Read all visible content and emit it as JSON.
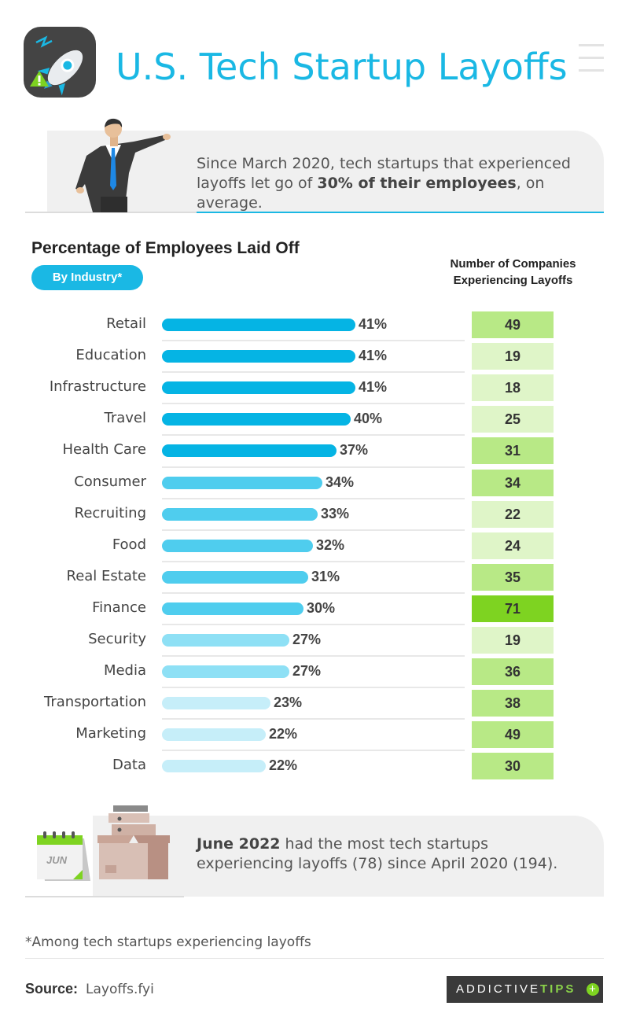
{
  "header": {
    "title": "U.S. Tech Startup Layoffs"
  },
  "callout_top": {
    "text_pre": "Since March 2020, tech startups that experienced layoffs let go of ",
    "text_bold": "30% of their employees",
    "text_post": ", on average."
  },
  "chart_heading": {
    "title": "Percentage of Employees Laid Off",
    "pill": "By Industry*",
    "count_header_line1": "Number of Companies",
    "count_header_line2": "Experiencing Layoffs"
  },
  "chart_data": {
    "type": "bar",
    "title": "Percentage of Employees Laid Off",
    "subtitle": "By Industry*",
    "categories": [
      "Retail",
      "Education",
      "Infrastructure",
      "Travel",
      "Health Care",
      "Consumer",
      "Recruiting",
      "Food",
      "Real Estate",
      "Finance",
      "Security",
      "Media",
      "Transportation",
      "Marketing",
      "Data"
    ],
    "series": [
      {
        "name": "",
        "values": [
          41,
          41,
          41,
          40,
          37,
          34,
          33,
          32,
          31,
          30,
          27,
          27,
          23,
          22,
          22
        ]
      }
    ],
    "value_labels": [
      "41%",
      "41%",
      "41%",
      "40%",
      "37%",
      "34%",
      "33%",
      "32%",
      "31%",
      "30%",
      "27%",
      "27%",
      "23%",
      "22%",
      "22%"
    ],
    "companies": {
      "name": "Number of Companies Experiencing Layoffs",
      "values": [
        49,
        19,
        18,
        25,
        31,
        34,
        22,
        24,
        35,
        71,
        19,
        36,
        38,
        49,
        30
      ]
    },
    "xlim": [
      0,
      41
    ],
    "orientation": "horizontal",
    "grid": false,
    "colors": {
      "bar_high": "#05b4e4",
      "bar_mid": "#4fcdee",
      "bar_low": "#8ee0f5",
      "bar_lowest": "#c6eef9",
      "count_strong": "#7ed321",
      "count_mid": "#b8e986",
      "count_light": "#dff5c8"
    }
  },
  "callout_bottom": {
    "calendar_label": "JUN",
    "text_bold": "June 2022",
    "text_rest": " had the most tech startups experiencing layoffs (78) since April 2020 (194)."
  },
  "footnote": "*Among tech startups experiencing layoffs",
  "source": {
    "label": "Source:",
    "value": "Layoffs.fyi"
  },
  "brand": {
    "part1": "ADDICTIVE",
    "part2": "TIPS"
  }
}
